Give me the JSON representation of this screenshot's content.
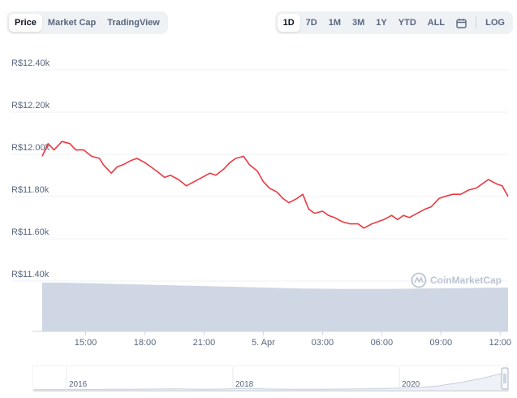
{
  "toolbar": {
    "left_tabs": [
      "Price",
      "Market Cap",
      "TradingView"
    ],
    "active_left": "Price",
    "range_tabs": [
      "1D",
      "7D",
      "1M",
      "3M",
      "1Y",
      "YTD",
      "ALL"
    ],
    "active_range": "1D",
    "calendar_icon": "calendar-icon",
    "log_label": "LOG"
  },
  "watermark": {
    "text": "CoinMarketCap",
    "icon": "coinmarketcap-logo-icon"
  },
  "colors": {
    "price_line": "#ea3943",
    "volume_fill": "#cfd6e4",
    "grid": "#eff2f5",
    "text": "#58667e"
  },
  "chart_data": {
    "type": "line",
    "ylim": [
      11400,
      12400
    ],
    "yticks": [
      {
        "value": 12400,
        "label": "R$12.40k"
      },
      {
        "value": 12200,
        "label": "R$12.20k"
      },
      {
        "value": 12000,
        "label": "R$12.00k"
      },
      {
        "value": 11800,
        "label": "R$11.80k"
      },
      {
        "value": 11600,
        "label": "R$11.60k"
      },
      {
        "value": 11400,
        "label": "R$11.40k"
      }
    ],
    "xlim": [
      12.8,
      36.4
    ],
    "xticks": [
      {
        "value": 15,
        "label": "15:00"
      },
      {
        "value": 18,
        "label": "18:00"
      },
      {
        "value": 21,
        "label": "21:00"
      },
      {
        "value": 24,
        "label": "5. Apr"
      },
      {
        "value": 27,
        "label": "03:00"
      },
      {
        "value": 30,
        "label": "06:00"
      },
      {
        "value": 33,
        "label": "09:00"
      },
      {
        "value": 36,
        "label": "12:00"
      }
    ],
    "series": [
      {
        "x": [
          12.8,
          13.1,
          13.4,
          13.8,
          14.2,
          14.5,
          14.9,
          15.3,
          15.7,
          15.9,
          16.3,
          16.6,
          16.9,
          17.3,
          17.6,
          18.0,
          18.3,
          18.6,
          19.0,
          19.3,
          19.7,
          20.1,
          20.5,
          20.9,
          21.3,
          21.6,
          22.0,
          22.3,
          22.6,
          23.0,
          23.3,
          23.7,
          24.0,
          24.3,
          24.7,
          25.0,
          25.3,
          25.7,
          26.0,
          26.3,
          26.6,
          27.0,
          27.3,
          27.6,
          28.0,
          28.4,
          28.8,
          29.1,
          29.5,
          29.8,
          30.1,
          30.5,
          30.8,
          31.1,
          31.4,
          31.8,
          32.2,
          32.5,
          32.9,
          33.2,
          33.6,
          34.0,
          34.4,
          34.8,
          35.1,
          35.4,
          35.8,
          36.1,
          36.4
        ],
        "y": [
          11960,
          12020,
          11990,
          12030,
          12020,
          11990,
          11990,
          11960,
          11950,
          11920,
          11880,
          11910,
          11920,
          11940,
          11950,
          11930,
          11910,
          11890,
          11860,
          11870,
          11850,
          11820,
          11840,
          11860,
          11880,
          11870,
          11900,
          11930,
          11950,
          11960,
          11920,
          11890,
          11840,
          11810,
          11790,
          11760,
          11740,
          11760,
          11780,
          11710,
          11690,
          11700,
          11680,
          11670,
          11650,
          11640,
          11640,
          11620,
          11640,
          11650,
          11660,
          11680,
          11660,
          11680,
          11670,
          11690,
          11710,
          11720,
          11760,
          11770,
          11780,
          11780,
          11800,
          11810,
          11830,
          11850,
          11830,
          11820,
          11770
        ]
      },
      {
        "name": "volume",
        "x": [
          12.8,
          14,
          16,
          18,
          20,
          22,
          24,
          26,
          28,
          30,
          32,
          34,
          36.4
        ],
        "y": [
          1.0,
          1.0,
          0.98,
          0.96,
          0.94,
          0.92,
          0.9,
          0.88,
          0.87,
          0.87,
          0.88,
          0.89,
          0.9
        ]
      }
    ],
    "navigator": {
      "labels": [
        "2016",
        "2018",
        "2020"
      ],
      "values": [
        0.05,
        0.05,
        0.05,
        0.06,
        0.06,
        0.07,
        0.08,
        0.06,
        0.07,
        0.1,
        0.07,
        0.06,
        0.06,
        0.07,
        0.08,
        0.1,
        0.12,
        0.2,
        0.35,
        0.55,
        0.8
      ]
    }
  }
}
